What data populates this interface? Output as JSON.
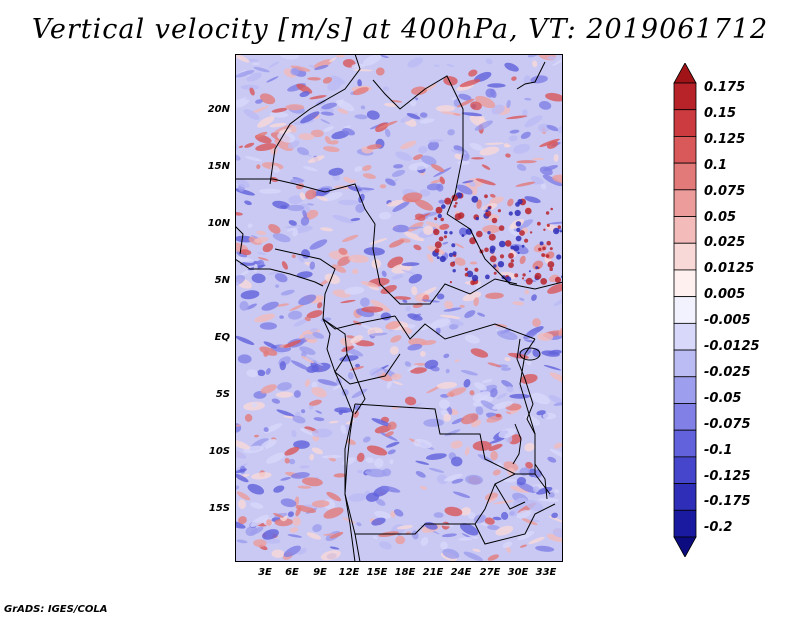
{
  "title": "Vertical velocity [m/s] at 400hPa, VT: 2019061712",
  "y_axis_labels": [
    "20N",
    "15N",
    "10N",
    "5N",
    "EQ",
    "5S",
    "10S",
    "15S"
  ],
  "x_axis_labels": [
    "3E",
    "6E",
    "9E",
    "12E",
    "15E",
    "18E",
    "21E",
    "24E",
    "27E",
    "30E",
    "33E"
  ],
  "colorbar": {
    "labels": [
      "0.175",
      "0.15",
      "0.125",
      "0.1",
      "0.075",
      "0.05",
      "0.025",
      "0.0125",
      "0.005",
      "-0.005",
      "-0.0125",
      "-0.025",
      "-0.05",
      "-0.075",
      "-0.1",
      "-0.125",
      "-0.175",
      "-0.2"
    ],
    "colors": [
      "#a01418",
      "#b8232a",
      "#cc3b3f",
      "#d9585a",
      "#e27a79",
      "#ec9c9b",
      "#f3bcbb",
      "#f9d9d8",
      "#fdf0ef",
      "#f2f2ff",
      "#d8d8fb",
      "#bcbcf5",
      "#9e9eee",
      "#8080e6",
      "#6262dc",
      "#4646cc",
      "#2e2eb8",
      "#1a1aa0",
      "#0c0c80"
    ]
  },
  "credit": "GrADS: IGES/COLA"
}
